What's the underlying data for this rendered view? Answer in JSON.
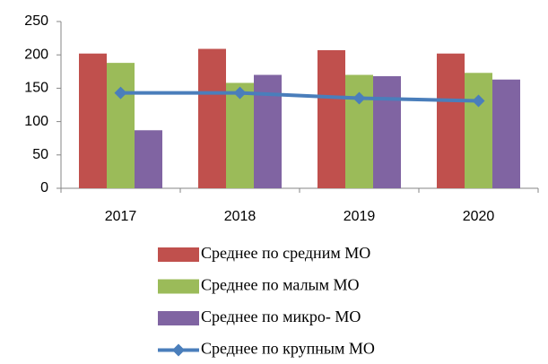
{
  "chart_data": {
    "type": "bar",
    "categories": [
      "2017",
      "2018",
      "2019",
      "2020"
    ],
    "series": [
      {
        "name": "Среднее по средним МО",
        "color": "#c0504d",
        "values": [
          202,
          209,
          207,
          202
        ]
      },
      {
        "name": "Среднее по малым МО",
        "color": "#9bbb59",
        "values": [
          188,
          158,
          170,
          173
        ]
      },
      {
        "name": "Среднее по микро- МО",
        "color": "#8064a2",
        "values": [
          87,
          170,
          168,
          163
        ]
      },
      {
        "name": "Среднее по крупным МО",
        "color": "#4a7ebb",
        "type": "line",
        "values": [
          143,
          143,
          135,
          131
        ]
      }
    ],
    "ylim": [
      0,
      250
    ],
    "yticks": [
      0,
      50,
      100,
      150,
      200,
      250
    ],
    "grid": false,
    "legend": "bottom"
  }
}
